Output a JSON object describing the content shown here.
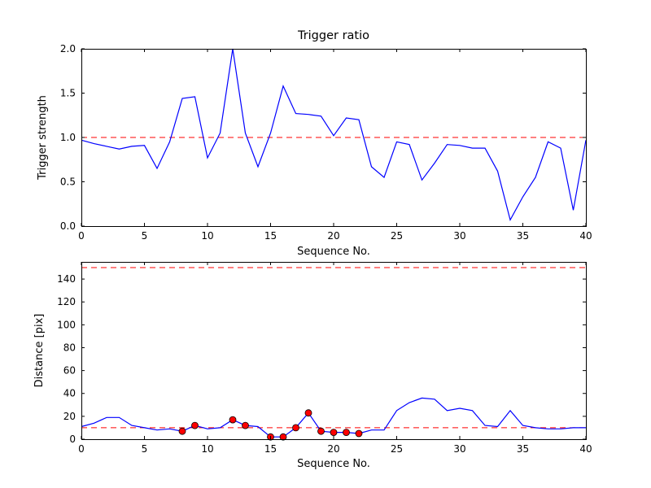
{
  "figure": {
    "background": "#ffffff"
  },
  "chart_data": [
    {
      "type": "line",
      "title": "Trigger ratio",
      "xlabel": "Sequence No.",
      "ylabel": "Trigger strength",
      "xlim": [
        0,
        40
      ],
      "ylim": [
        0,
        2.0
      ],
      "xticks": [
        0,
        5,
        10,
        15,
        20,
        25,
        30,
        35,
        40
      ],
      "xtick_labels": [
        "0",
        "5",
        "10",
        "15",
        "20",
        "25",
        "30",
        "35",
        "40"
      ],
      "yticks": [
        0.0,
        0.5,
        1.0,
        1.5,
        2.0
      ],
      "ytick_labels": [
        "0.0",
        "0.5",
        "1.0",
        "1.5",
        "2.0"
      ],
      "line_color": "#0000ff",
      "grid": false,
      "hlines": [
        {
          "y": 1.0,
          "color": "#ff0000",
          "style": "dashed"
        }
      ],
      "x": [
        0,
        1,
        2,
        3,
        4,
        5,
        6,
        7,
        8,
        9,
        10,
        11,
        12,
        13,
        14,
        15,
        16,
        17,
        18,
        19,
        20,
        21,
        22,
        23,
        24,
        25,
        26,
        27,
        28,
        29,
        30,
        31,
        32,
        33,
        34,
        35,
        36,
        37,
        38,
        39,
        40
      ],
      "y": [
        0.97,
        0.93,
        0.9,
        0.87,
        0.9,
        0.91,
        0.65,
        0.95,
        1.44,
        1.46,
        0.77,
        1.05,
        2.0,
        1.05,
        0.67,
        1.05,
        1.58,
        1.27,
        1.26,
        1.24,
        1.02,
        1.22,
        1.2,
        0.67,
        0.55,
        0.95,
        0.92,
        0.52,
        0.71,
        0.92,
        0.91,
        0.88,
        0.88,
        0.62,
        0.07,
        0.33,
        0.55,
        0.95,
        0.88,
        0.18,
        0.97
      ]
    },
    {
      "type": "line",
      "title": "",
      "xlabel": "Sequence No.",
      "ylabel": "Distance [pix]",
      "xlim": [
        0,
        40
      ],
      "ylim": [
        0,
        155
      ],
      "xticks": [
        0,
        5,
        10,
        15,
        20,
        25,
        30,
        35,
        40
      ],
      "xtick_labels": [
        "0",
        "5",
        "10",
        "15",
        "20",
        "25",
        "30",
        "35",
        "40"
      ],
      "yticks": [
        0,
        20,
        40,
        60,
        80,
        100,
        120,
        140
      ],
      "ytick_labels": [
        "0",
        "20",
        "40",
        "60",
        "80",
        "100",
        "120",
        "140"
      ],
      "line_color": "#0000ff",
      "grid": false,
      "hlines": [
        {
          "y": 150,
          "color": "#ff0000",
          "style": "dashed"
        },
        {
          "y": 10,
          "color": "#ff0000",
          "style": "dashed"
        }
      ],
      "x": [
        0,
        1,
        2,
        3,
        4,
        5,
        6,
        7,
        8,
        9,
        10,
        11,
        12,
        13,
        14,
        15,
        16,
        17,
        18,
        19,
        20,
        21,
        22,
        23,
        24,
        25,
        26,
        27,
        28,
        29,
        30,
        31,
        32,
        33,
        34,
        35,
        36,
        37,
        38,
        39,
        40
      ],
      "y": [
        11,
        14,
        19,
        19,
        12,
        10,
        8,
        9,
        7,
        12,
        9,
        10,
        17,
        12,
        11,
        2,
        2,
        10,
        23,
        7,
        6,
        6,
        5,
        8,
        8,
        25,
        32,
        36,
        35,
        25,
        27,
        25,
        12,
        11,
        25,
        12,
        10,
        9,
        9,
        10,
        10
      ],
      "markers": {
        "x": [
          8,
          9,
          12,
          13,
          15,
          16,
          17,
          18,
          19,
          20,
          21,
          22
        ],
        "y": [
          7,
          12,
          17,
          12,
          2,
          2,
          10,
          23,
          7,
          6,
          6,
          5
        ],
        "color": "#ff0000"
      }
    }
  ]
}
